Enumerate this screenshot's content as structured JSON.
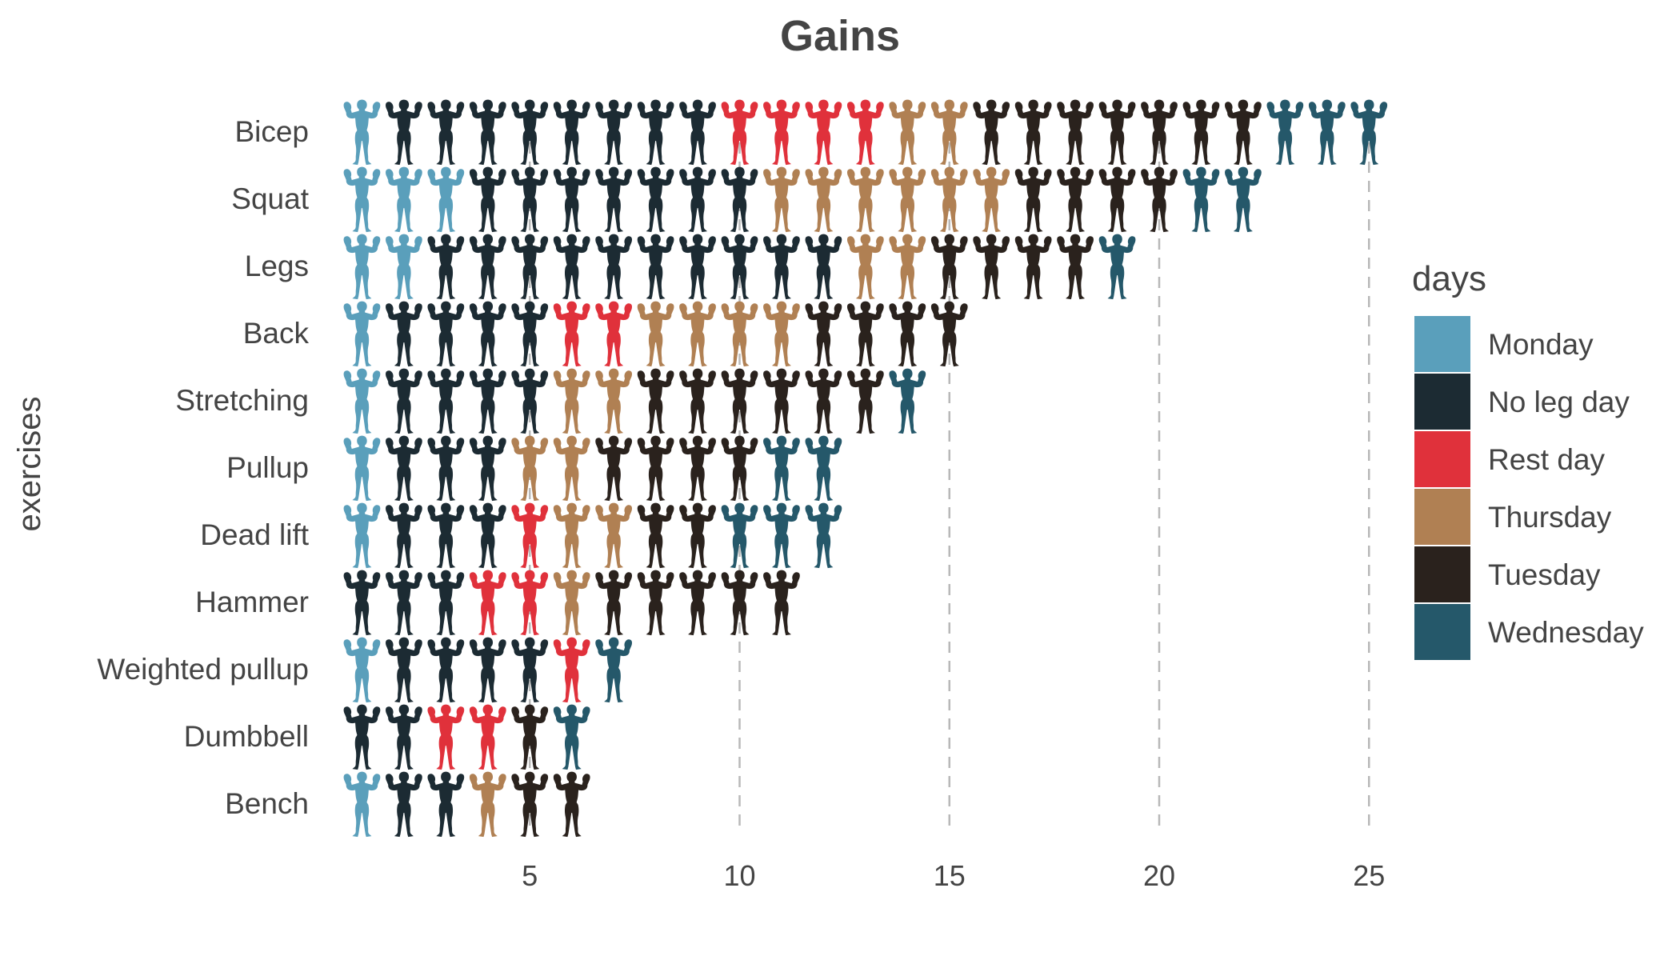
{
  "chart_data": {
    "type": "pictogram",
    "title": "Gains",
    "xlabel": "",
    "ylabel": "exercises",
    "xlim": [
      0,
      25.5
    ],
    "xticks": [
      5,
      10,
      15,
      20,
      25
    ],
    "grid": "vertical-dashed",
    "legend": {
      "title": "days",
      "position": "right"
    },
    "icon": "flexing-man-icon",
    "days": [
      {
        "name": "Monday",
        "color": "#5a9fbb"
      },
      {
        "name": "No leg day",
        "color": "#1c2b33"
      },
      {
        "name": "Rest day",
        "color": "#e0313b"
      },
      {
        "name": "Thursday",
        "color": "#b08053"
      },
      {
        "name": "Tuesday",
        "color": "#2a221d"
      },
      {
        "name": "Wednesday",
        "color": "#25586a"
      }
    ],
    "categories": [
      "Bicep",
      "Squat",
      "Legs",
      "Back",
      "Stretching",
      "Pullup",
      "Dead lift",
      "Hammer",
      "Weighted pullup",
      "Dumbbell",
      "Bench"
    ],
    "series": [
      {
        "name": "Monday",
        "values": [
          1,
          3,
          2,
          1,
          1,
          1,
          1,
          0,
          1,
          0,
          1
        ]
      },
      {
        "name": "No leg day",
        "values": [
          8,
          7,
          10,
          4,
          4,
          3,
          3,
          3,
          4,
          2,
          2
        ]
      },
      {
        "name": "Rest day",
        "values": [
          4,
          0,
          0,
          2,
          0,
          0,
          1,
          2,
          1,
          2,
          0
        ]
      },
      {
        "name": "Thursday",
        "values": [
          2,
          6,
          2,
          4,
          2,
          2,
          2,
          1,
          0,
          0,
          1
        ]
      },
      {
        "name": "Tuesday",
        "values": [
          7,
          4,
          4,
          4,
          6,
          4,
          2,
          5,
          0,
          1,
          2
        ]
      },
      {
        "name": "Wednesday",
        "values": [
          3,
          2,
          1,
          0,
          1,
          2,
          3,
          0,
          1,
          1,
          0
        ]
      }
    ]
  }
}
